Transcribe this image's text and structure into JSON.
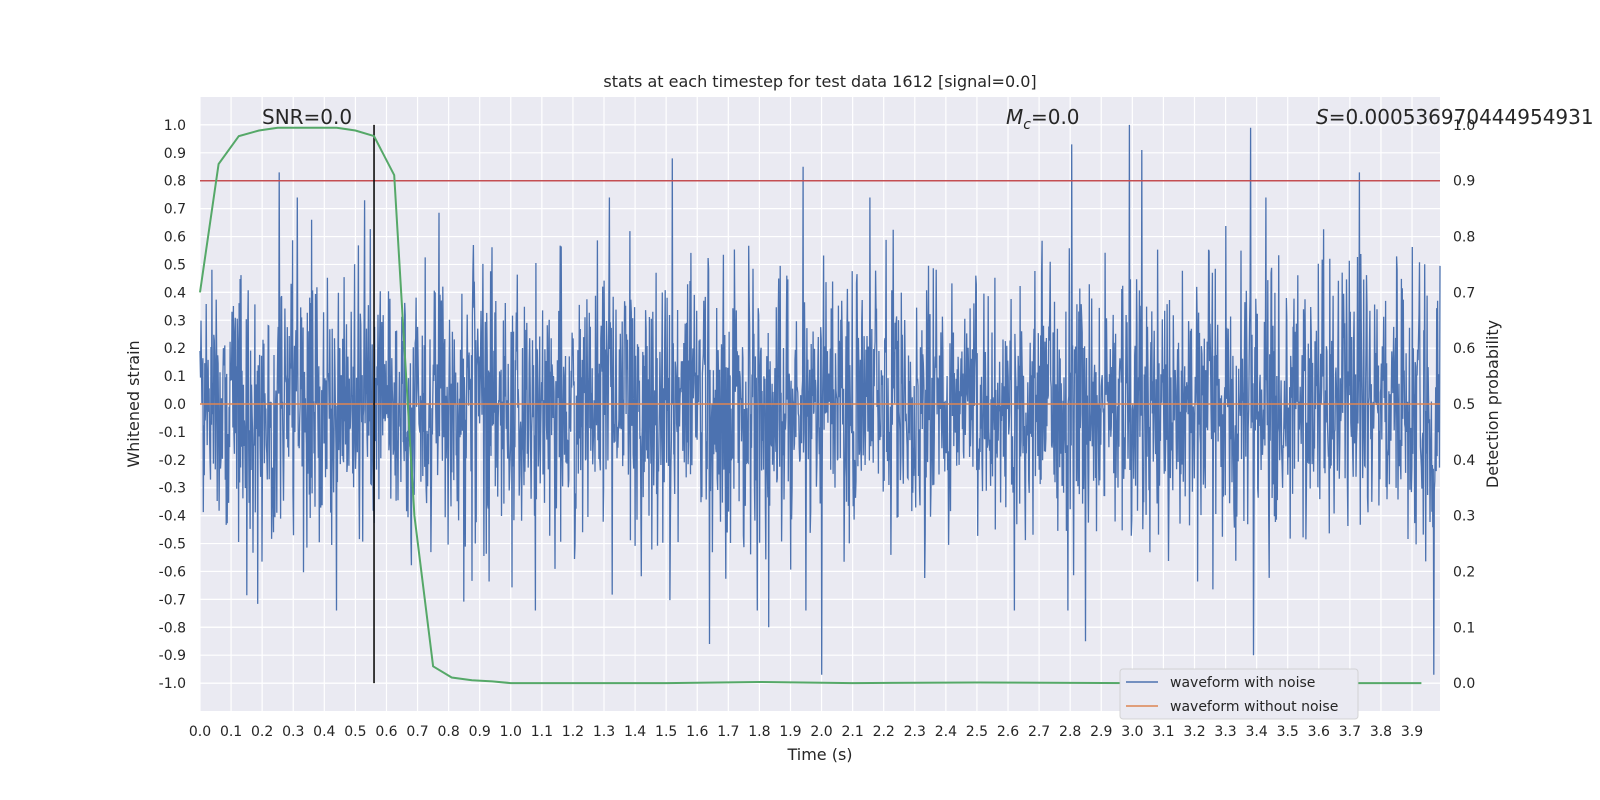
{
  "chart_data": {
    "type": "line",
    "title": "stats at each timestep for test data 1612 [signal=0.0]",
    "xlabel": "Time (s)",
    "ylabel": "Whitened strain",
    "y2label": "Detection probability",
    "xlim": [
      0.0,
      3.99
    ],
    "ylim": [
      -1.1,
      1.1
    ],
    "y2lim": [
      -0.05,
      1.05
    ],
    "xticks": [
      "0.0",
      "0.1",
      "0.2",
      "0.3",
      "0.4",
      "0.5",
      "0.6",
      "0.7",
      "0.8",
      "0.9",
      "1.0",
      "1.1",
      "1.2",
      "1.3",
      "1.4",
      "1.5",
      "1.6",
      "1.7",
      "1.8",
      "1.9",
      "2.0",
      "2.1",
      "2.2",
      "2.3",
      "2.4",
      "2.5",
      "2.6",
      "2.7",
      "2.8",
      "2.9",
      "3.0",
      "3.1",
      "3.2",
      "3.3",
      "3.4",
      "3.5",
      "3.6",
      "3.7",
      "3.8",
      "3.9"
    ],
    "yticks": [
      "1.0",
      "0.9",
      "0.8",
      "0.7",
      "0.6",
      "0.5",
      "0.4",
      "0.3",
      "0.2",
      "0.1",
      "0.0",
      "-0.1",
      "-0.2",
      "-0.3",
      "-0.4",
      "-0.5",
      "-0.6",
      "-0.7",
      "-0.8",
      "-0.9",
      "-1.0"
    ],
    "y2ticks": [
      "1.0",
      "0.9",
      "0.8",
      "0.7",
      "0.6",
      "0.5",
      "0.4",
      "0.3",
      "0.2",
      "0.1",
      "0.0"
    ],
    "grid": true,
    "legend_position": "lower right",
    "annotations": {
      "snr": "SNR=0.0",
      "mc_symbol": "M",
      "mc_sub": "c",
      "mc_value": "=0.0",
      "s_symbol": "S",
      "s_value": "=0.000536970444954931"
    },
    "threshold_line": {
      "axis": "y",
      "value": 0.8,
      "color": "#c44e52"
    },
    "marker_line": {
      "axis": "x",
      "value": 0.56,
      "color": "#000000"
    },
    "series": [
      {
        "name": "waveform with noise",
        "color": "#4c72b0",
        "axis": "left",
        "noise_model": "whitened gaussian, |strain| mostly within 0.75, peaks up to 1.0",
        "notable_peaks": [
          {
            "x": 0.255,
            "y": 0.83
          },
          {
            "x": 0.36,
            "y": 0.66
          },
          {
            "x": 0.53,
            "y": 0.73
          },
          {
            "x": 1.52,
            "y": 0.88
          },
          {
            "x": 1.94,
            "y": 0.85
          },
          {
            "x": 2.805,
            "y": 0.93
          },
          {
            "x": 2.99,
            "y": 1.0
          },
          {
            "x": 3.03,
            "y": 0.91
          },
          {
            "x": 3.38,
            "y": 0.99
          },
          {
            "x": 3.73,
            "y": 0.83
          },
          {
            "x": 2.0,
            "y": -0.97
          },
          {
            "x": 3.39,
            "y": -0.9
          },
          {
            "x": 2.85,
            "y": -0.85
          },
          {
            "x": 1.64,
            "y": -0.86
          },
          {
            "x": 1.83,
            "y": -0.8
          },
          {
            "x": 3.97,
            "y": -0.97
          }
        ]
      },
      {
        "name": "waveform without noise",
        "color": "#dd8452",
        "axis": "left",
        "x": [
          0.0,
          3.99
        ],
        "y": [
          0.0,
          0.0
        ]
      },
      {
        "name": "",
        "color": "#55a868",
        "axis": "right",
        "x": [
          0.0,
          0.06,
          0.125,
          0.19,
          0.25,
          0.31,
          0.375,
          0.44,
          0.5,
          0.56,
          0.625,
          0.69,
          0.75,
          0.81,
          0.875,
          0.94,
          1.0,
          1.25,
          1.5,
          1.8,
          2.1,
          2.5,
          3.0,
          3.5,
          3.93
        ],
        "y": [
          0.7,
          0.93,
          0.98,
          0.99,
          0.995,
          0.995,
          0.995,
          0.995,
          0.99,
          0.98,
          0.91,
          0.3,
          0.03,
          0.01,
          0.005,
          0.003,
          0.0,
          0.0,
          0.0,
          0.002,
          0.0,
          0.001,
          0.0,
          0.0,
          0.0
        ]
      }
    ]
  }
}
